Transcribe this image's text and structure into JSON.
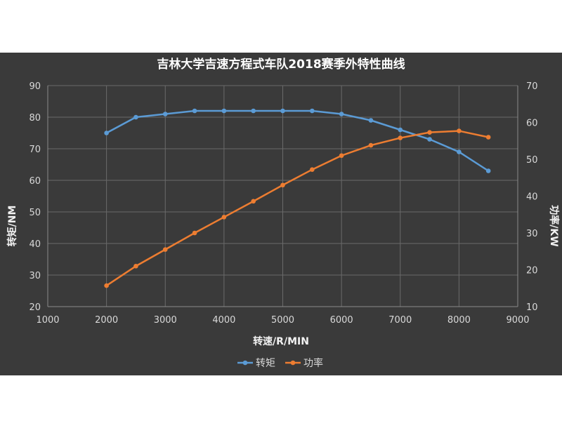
{
  "chart_data": {
    "type": "line",
    "title": "吉林大学吉速方程式车队2018赛季外特性曲线",
    "xlabel": "转速/R/MIN",
    "ylabel_left": "转矩/NM",
    "ylabel_right": "功率/KW",
    "xlim": [
      1000,
      9000
    ],
    "xticks": [
      "1000",
      "2000",
      "3000",
      "4000",
      "5000",
      "6000",
      "7000",
      "8000",
      "9000"
    ],
    "ylim_left": [
      20,
      90
    ],
    "yticks_left": [
      "20",
      "30",
      "40",
      "50",
      "60",
      "70",
      "80",
      "90"
    ],
    "ylim_right": [
      10,
      70
    ],
    "yticks_right": [
      "10",
      "20",
      "30",
      "40",
      "50",
      "60",
      "70"
    ],
    "grid": true,
    "legend_position": "bottom",
    "x": [
      2000,
      2500,
      3000,
      3500,
      4000,
      4500,
      5000,
      5500,
      6000,
      6500,
      7000,
      7500,
      8000,
      8500
    ],
    "series": [
      {
        "name": "转矩",
        "axis": "left",
        "color": "#5b9bd5",
        "values": [
          75,
          80,
          81,
          82,
          82,
          82,
          82,
          82,
          81,
          79,
          76,
          73,
          69,
          63
        ]
      },
      {
        "name": "功率",
        "axis": "right",
        "color": "#ed7d31",
        "values": [
          15.7,
          21.0,
          25.5,
          30.0,
          34.3,
          38.6,
          43.0,
          47.2,
          51.0,
          53.8,
          55.8,
          57.3,
          57.7,
          56.0
        ]
      }
    ]
  }
}
